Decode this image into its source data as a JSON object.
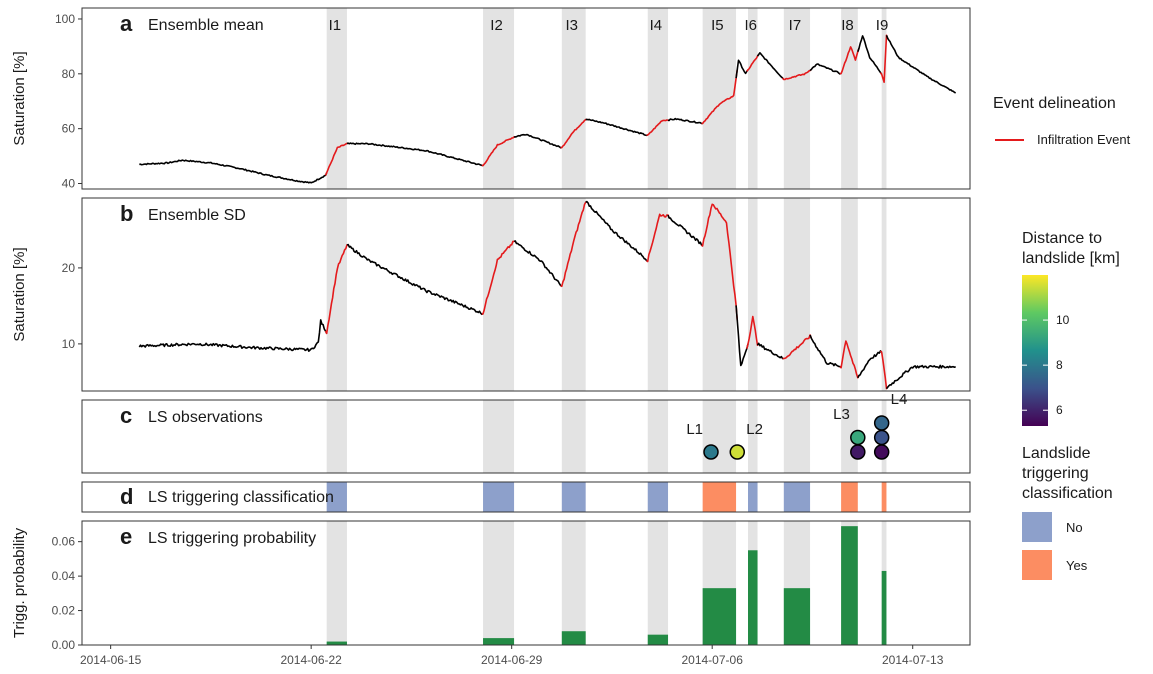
{
  "chart_data": {
    "type": "multi-panel time series",
    "x_axis": {
      "type": "date",
      "range": [
        "2014-06-14",
        "2014-07-15"
      ],
      "tick_labels": [
        "2014-06-15",
        "2014-06-22",
        "2014-06-29",
        "2014-07-06",
        "2014-07-13"
      ]
    },
    "events": [
      {
        "label": "I1",
        "start": "2014-06-22 13:00",
        "end": "2014-06-23 06:00",
        "triggering": "No",
        "probability": 0.002
      },
      {
        "label": "I2",
        "start": "2014-06-28 00:00",
        "end": "2014-06-29 02:00",
        "triggering": "No",
        "probability": 0.004
      },
      {
        "label": "I3",
        "start": "2014-06-30 18:00",
        "end": "2014-07-01 14:00",
        "triggering": "No",
        "probability": 0.008
      },
      {
        "label": "I4",
        "start": "2014-07-03 18:00",
        "end": "2014-07-04 11:00",
        "triggering": "No",
        "probability": 0.006
      },
      {
        "label": "I5",
        "start": "2014-07-05 16:00",
        "end": "2014-07-06 20:00",
        "triggering": "Yes",
        "probability": 0.033
      },
      {
        "label": "I6",
        "start": "2014-07-07 06:00",
        "end": "2014-07-07 14:00",
        "triggering": "No",
        "probability": 0.055
      },
      {
        "label": "I7",
        "start": "2014-07-08 12:00",
        "end": "2014-07-09 10:00",
        "triggering": "No",
        "probability": 0.033
      },
      {
        "label": "I8",
        "start": "2014-07-10 12:00",
        "end": "2014-07-11 02:00",
        "triggering": "Yes",
        "probability": 0.069
      },
      {
        "label": "I9",
        "start": "2014-07-11 22:00",
        "end": "2014-07-12 02:00",
        "triggering": "Yes",
        "probability": 0.043
      }
    ],
    "panels": [
      {
        "letter": "a",
        "title": "Ensemble mean",
        "ylabel": "Saturation [%]",
        "ylim": [
          38,
          104
        ],
        "yticks": [
          40,
          60,
          80,
          100
        ],
        "key_points": [
          [
            "2014-06-16 00:00",
            47
          ],
          [
            "2014-06-17 00:00",
            47.5
          ],
          [
            "2014-06-17 12:00",
            48.5
          ],
          [
            "2014-06-18 12:00",
            47.5
          ],
          [
            "2014-06-19 12:00",
            45.5
          ],
          [
            "2014-06-20 12:00",
            43
          ],
          [
            "2014-06-21 12:00",
            41
          ],
          [
            "2014-06-22 00:00",
            40.2
          ],
          [
            "2014-06-22 12:00",
            43
          ],
          [
            "2014-06-22 22:00",
            53
          ],
          [
            "2014-06-23 06:00",
            54.5
          ],
          [
            "2014-06-24 00:00",
            54.5
          ],
          [
            "2014-06-26 00:00",
            52
          ],
          [
            "2014-06-28 00:00",
            46.5
          ],
          [
            "2014-06-28 12:00",
            54
          ],
          [
            "2014-06-29 02:00",
            57
          ],
          [
            "2014-06-29 12:00",
            58
          ],
          [
            "2014-06-30 18:00",
            53
          ],
          [
            "2014-07-01 02:00",
            58
          ],
          [
            "2014-07-01 14:00",
            63.5
          ],
          [
            "2014-07-02 06:00",
            62
          ],
          [
            "2014-07-03 18:00",
            57.5
          ],
          [
            "2014-07-04 06:00",
            63
          ],
          [
            "2014-07-04 18:00",
            63.5
          ],
          [
            "2014-07-05 16:00",
            62
          ],
          [
            "2014-07-06 06:00",
            69
          ],
          [
            "2014-07-06 18:00",
            72
          ],
          [
            "2014-07-06 22:00",
            85
          ],
          [
            "2014-07-07 04:00",
            80
          ],
          [
            "2014-07-07 10:00",
            84
          ],
          [
            "2014-07-07 16:00",
            87.5
          ],
          [
            "2014-07-08 12:00",
            78
          ],
          [
            "2014-07-09 06:00",
            80
          ],
          [
            "2014-07-09 16:00",
            83.5
          ],
          [
            "2014-07-10 12:00",
            80
          ],
          [
            "2014-07-10 20:00",
            90
          ],
          [
            "2014-07-11 00:00",
            85
          ],
          [
            "2014-07-11 06:00",
            94
          ],
          [
            "2014-07-11 12:00",
            86
          ],
          [
            "2014-07-11 22:00",
            80
          ],
          [
            "2014-07-12 00:00",
            77
          ],
          [
            "2014-07-12 02:00",
            94
          ],
          [
            "2014-07-12 12:00",
            86
          ],
          [
            "2014-07-13 12:00",
            79
          ],
          [
            "2014-07-14 12:00",
            73
          ]
        ]
      },
      {
        "letter": "b",
        "title": "Ensemble SD",
        "ylabel": "Saturation [%]",
        "ylim": [
          3.8,
          29.2
        ],
        "yticks": [
          10,
          20
        ],
        "key_points": [
          [
            "2014-06-16 00:00",
            9.7
          ],
          [
            "2014-06-18 00:00",
            10
          ],
          [
            "2014-06-20 00:00",
            9.5
          ],
          [
            "2014-06-22 00:00",
            9.2
          ],
          [
            "2014-06-22 06:00",
            10.2
          ],
          [
            "2014-06-22 08:00",
            13
          ],
          [
            "2014-06-22 13:00",
            11.5
          ],
          [
            "2014-06-22 22:00",
            20
          ],
          [
            "2014-06-23 06:00",
            23
          ],
          [
            "2014-06-24 00:00",
            21
          ],
          [
            "2014-06-26 00:00",
            17
          ],
          [
            "2014-06-28 00:00",
            14
          ],
          [
            "2014-06-28 12:00",
            21
          ],
          [
            "2014-06-29 02:00",
            23.5
          ],
          [
            "2014-06-30 00:00",
            21
          ],
          [
            "2014-06-30 18:00",
            17.5
          ],
          [
            "2014-07-01 04:00",
            23.5
          ],
          [
            "2014-07-01 14:00",
            28.8
          ],
          [
            "2014-07-02 12:00",
            25
          ],
          [
            "2014-07-03 18:00",
            21
          ],
          [
            "2014-07-04 04:00",
            27
          ],
          [
            "2014-07-04 11:00",
            26.8
          ],
          [
            "2014-07-05 16:00",
            23
          ],
          [
            "2014-07-06 00:00",
            28.5
          ],
          [
            "2014-07-06 12:00",
            26
          ],
          [
            "2014-07-06 20:00",
            15
          ],
          [
            "2014-07-07 00:00",
            7
          ],
          [
            "2014-07-07 06:00",
            10
          ],
          [
            "2014-07-07 10:00",
            13.5
          ],
          [
            "2014-07-07 14:00",
            10
          ],
          [
            "2014-07-08 12:00",
            8
          ],
          [
            "2014-07-09 10:00",
            11
          ],
          [
            "2014-07-10 00:00",
            7.5
          ],
          [
            "2014-07-10 12:00",
            7
          ],
          [
            "2014-07-10 16:00",
            10.5
          ],
          [
            "2014-07-11 02:00",
            5.5
          ],
          [
            "2014-07-11 12:00",
            8
          ],
          [
            "2014-07-11 22:00",
            9
          ],
          [
            "2014-07-12 02:00",
            4.2
          ],
          [
            "2014-07-13 00:00",
            7
          ],
          [
            "2014-07-14 12:00",
            7
          ]
        ]
      },
      {
        "letter": "c",
        "title": "LS observations",
        "landslides": [
          {
            "label": "L1",
            "time": "2014-07-05 23:00",
            "distance_km": 8.0,
            "level": 1
          },
          {
            "label": "L2",
            "time": "2014-07-06 21:00",
            "distance_km": 11.5,
            "level": 1
          },
          {
            "label": "L3",
            "time": "2014-07-11 02:00",
            "distance_km": 9.3,
            "level": 2
          },
          {
            "label": "L3",
            "time": "2014-07-11 02:00",
            "distance_km": 5.8,
            "level": 1
          },
          {
            "label": "L4",
            "time": "2014-07-11 22:00",
            "distance_km": 7.5,
            "level": 3
          },
          {
            "label": "L4",
            "time": "2014-07-11 22:00",
            "distance_km": 7.0,
            "level": 2
          },
          {
            "label": "L4",
            "time": "2014-07-11 22:00",
            "distance_km": 5.5,
            "level": 1
          }
        ]
      },
      {
        "letter": "d",
        "title": "LS triggering classification"
      },
      {
        "letter": "e",
        "title": "LS triggering probability",
        "ylabel": "Trigg. probability",
        "ylim": [
          0,
          0.072
        ],
        "yticks": [
          0.0,
          0.02,
          0.04,
          0.06
        ]
      }
    ],
    "colors": {
      "series": "#000000",
      "infiltration_event": "#e41a1c",
      "event_band": "#e3e3e3",
      "class_no": "#8da0cb",
      "class_yes": "#fc8d62",
      "probability_bar": "#238b45"
    },
    "legends": {
      "event_delineation": {
        "title": "Event delineation",
        "items": [
          {
            "label": "Infiltration Event",
            "color": "#e41a1c"
          }
        ]
      },
      "distance": {
        "title_lines": [
          "Distance to",
          "landslide [km]"
        ],
        "range": [
          5.3,
          12.0
        ],
        "ticks": [
          6,
          8,
          10
        ]
      },
      "classification": {
        "title_lines": [
          "Landslide",
          "triggering",
          "classification"
        ],
        "items": [
          {
            "label": "No",
            "color": "#8da0cb"
          },
          {
            "label": "Yes",
            "color": "#fc8d62"
          }
        ]
      }
    }
  }
}
